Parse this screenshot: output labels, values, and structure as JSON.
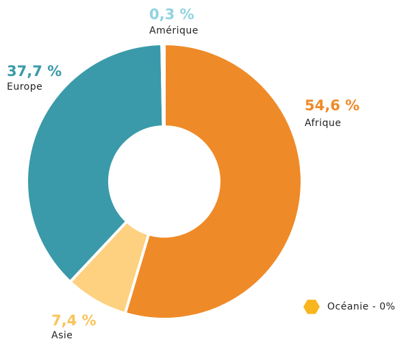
{
  "chart_data": {
    "type": "donut",
    "categories": [
      "Afrique",
      "Asie",
      "Europe",
      "Amérique",
      "Océanie"
    ],
    "values": [
      54.6,
      7.4,
      37.7,
      0.3,
      0
    ],
    "value_labels": [
      "54,6 %",
      "7,4 %",
      "37,7 %",
      "0,3 %",
      "0%"
    ],
    "colors": [
      "#ef8a28",
      "#fdd17f",
      "#3a9aa9",
      "#8fd3e0",
      "#f8b51d"
    ],
    "label_colors": [
      "#ef8a28",
      "#f9c45a",
      "#3a9aa9",
      "#8fd3e0",
      "#f8b51d"
    ],
    "legend_separator": " - "
  }
}
